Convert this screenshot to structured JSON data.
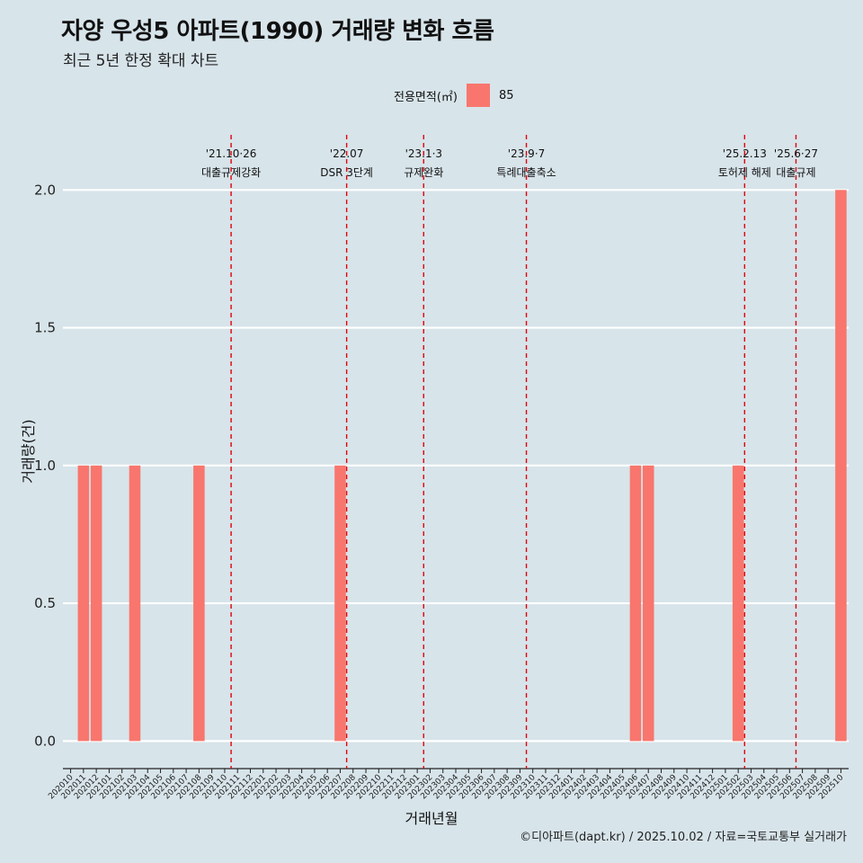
{
  "title": "자양 우성5 아파트(1990) 거래량 변화 흐름",
  "subtitle": "최근 5년 한정 확대 차트",
  "legend": {
    "title": "전용면적(㎡)",
    "item": "85",
    "color": "#f8766d"
  },
  "caption": "©디아파트(dapt.kr) / 2025.10.02 / 자료=국토교통부 실거래가",
  "chart_data": {
    "type": "bar",
    "title": "자양 우성5 아파트(1990) 거래량 변화 흐름",
    "xlabel": "거래년월",
    "ylabel": "거래량(건)",
    "ylim": [
      -0.1,
      2.2
    ],
    "yticks": [
      "0.0",
      "0.5",
      "1.0",
      "1.5",
      "2.0"
    ],
    "bar_color": "#f8766d",
    "categories": [
      "202010",
      "202011",
      "202012",
      "202101",
      "202102",
      "202103",
      "202104",
      "202105",
      "202106",
      "202107",
      "202108",
      "202109",
      "202110",
      "202111",
      "202112",
      "202201",
      "202202",
      "202203",
      "202204",
      "202205",
      "202206",
      "202207",
      "202208",
      "202209",
      "202210",
      "202211",
      "202212",
      "202301",
      "202302",
      "202303",
      "202304",
      "202305",
      "202306",
      "202307",
      "202308",
      "202309",
      "202310",
      "202311",
      "202312",
      "202401",
      "202402",
      "202403",
      "202404",
      "202405",
      "202406",
      "202407",
      "202408",
      "202409",
      "202410",
      "202411",
      "202412",
      "202501",
      "202502",
      "202503",
      "202504",
      "202505",
      "202506",
      "202507",
      "202508",
      "202509",
      "202510"
    ],
    "series": [
      {
        "name": "85",
        "values": [
          0,
          1,
          1,
          0,
          0,
          1,
          0,
          0,
          0,
          0,
          1,
          0,
          0,
          0,
          0,
          0,
          0,
          0,
          0,
          0,
          0,
          1,
          0,
          0,
          0,
          0,
          0,
          0,
          0,
          0,
          0,
          0,
          0,
          0,
          0,
          0,
          0,
          0,
          0,
          0,
          0,
          0,
          0,
          0,
          1,
          1,
          0,
          0,
          0,
          0,
          0,
          0,
          1,
          0,
          0,
          0,
          0,
          0,
          0,
          0,
          2
        ]
      }
    ],
    "annotations": [
      {
        "date": "'21.10·26",
        "label": "대출규제강화",
        "index": 12.5
      },
      {
        "date": "'22.07",
        "label": "DSR 3단계",
        "index": 21.5
      },
      {
        "date": "'23.1·3",
        "label": "규제완화",
        "index": 27.5
      },
      {
        "date": "'23.9·7",
        "label": "특례대출축소",
        "index": 35.5
      },
      {
        "date": "'25.2.13",
        "label": "토허제 해제",
        "index": 52.5
      },
      {
        "date": "'25.6·27",
        "label": "대출규제",
        "index": 56.5
      }
    ]
  }
}
